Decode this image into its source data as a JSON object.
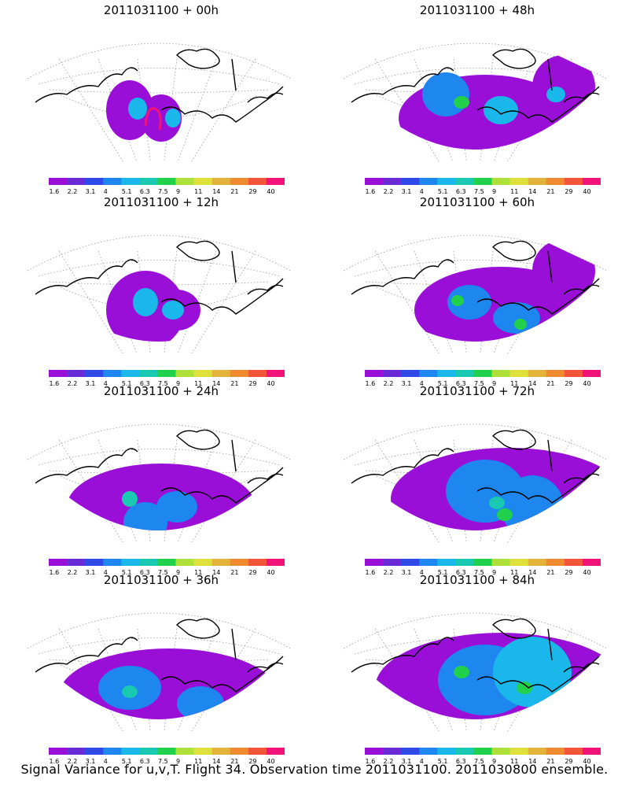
{
  "panels": [
    {
      "title": "2011031100 + 00h"
    },
    {
      "title": "2011031100 + 48h"
    },
    {
      "title": "2011031100 + 12h"
    },
    {
      "title": "2011031100 + 60h"
    },
    {
      "title": "2011031100 + 24h"
    },
    {
      "title": "2011031100 + 72h"
    },
    {
      "title": "2011031100 + 36h"
    },
    {
      "title": "2011031100 + 84h"
    }
  ],
  "colorbar": {
    "labels": [
      "1.6",
      "2.2",
      "3.1",
      "4",
      "5.1",
      "6.3",
      "7.5",
      "9",
      "11",
      "14",
      "21",
      "29",
      "40"
    ],
    "colors": [
      "#9a0fd8",
      "#6a2bd6",
      "#2f49e8",
      "#1e86ef",
      "#1ab8ea",
      "#19c9b2",
      "#21d14c",
      "#aee03a",
      "#dfe03a",
      "#e3b23a",
      "#ef8a30",
      "#f2553a",
      "#f1137a"
    ]
  },
  "caption": "Signal Variance for u,v,T. Flight 34. Observation time 2011031100. 2011030800 ensemble."
}
